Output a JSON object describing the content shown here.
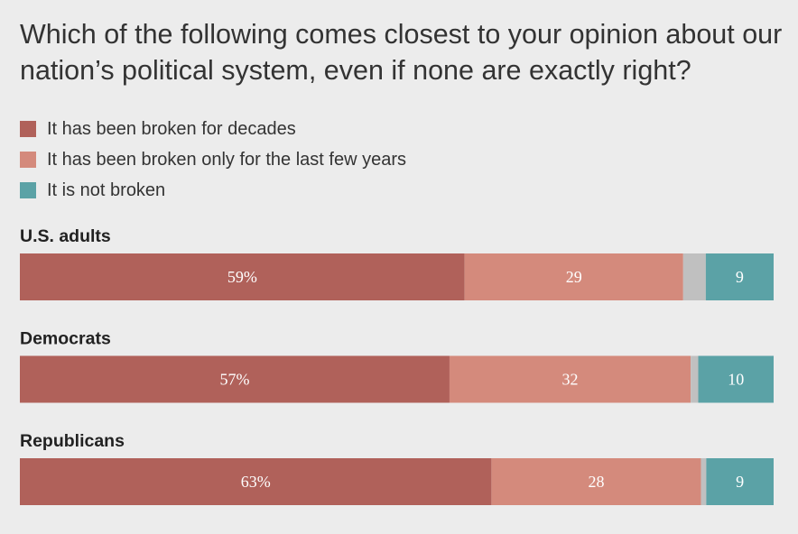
{
  "title": "Which of the following comes closest to your opinion about our nation’s political system, even if none are exactly right?",
  "colors": {
    "decades": "#b0615a",
    "few_years": "#d48a7c",
    "other": "#c0c0c0",
    "not_broken": "#5ba2a6",
    "background": "#ececec"
  },
  "legend": [
    {
      "label": "It has been broken for decades",
      "color": "#b0615a"
    },
    {
      "label": "It has been broken only for the last few years",
      "color": "#d48a7c"
    },
    {
      "label": "It is not broken",
      "color": "#5ba2a6"
    }
  ],
  "chart_data": {
    "type": "bar",
    "orientation": "horizontal",
    "stacked": true,
    "unit": "percent",
    "xlim": [
      0,
      100
    ],
    "grid": false,
    "legend_position": "top-left",
    "categories": [
      "U.S. adults",
      "Democrats",
      "Republicans"
    ],
    "series": [
      {
        "name": "It has been broken for decades",
        "values": [
          59,
          57,
          63
        ],
        "labels": [
          "59%",
          "57%",
          "63%"
        ],
        "color": "#b0615a"
      },
      {
        "name": "It has been broken only for the last few years",
        "values": [
          29,
          32,
          28
        ],
        "labels": [
          "29",
          "32",
          "28"
        ],
        "color": "#d48a7c"
      },
      {
        "values": [
          3,
          1,
          0.7
        ],
        "labels": [
          "",
          "",
          ""
        ],
        "color": "#c0c0c0"
      },
      {
        "name": "It is not broken",
        "values": [
          9,
          10,
          9
        ],
        "labels": [
          "9",
          "10",
          "9"
        ],
        "color": "#5ba2a6"
      }
    ]
  }
}
